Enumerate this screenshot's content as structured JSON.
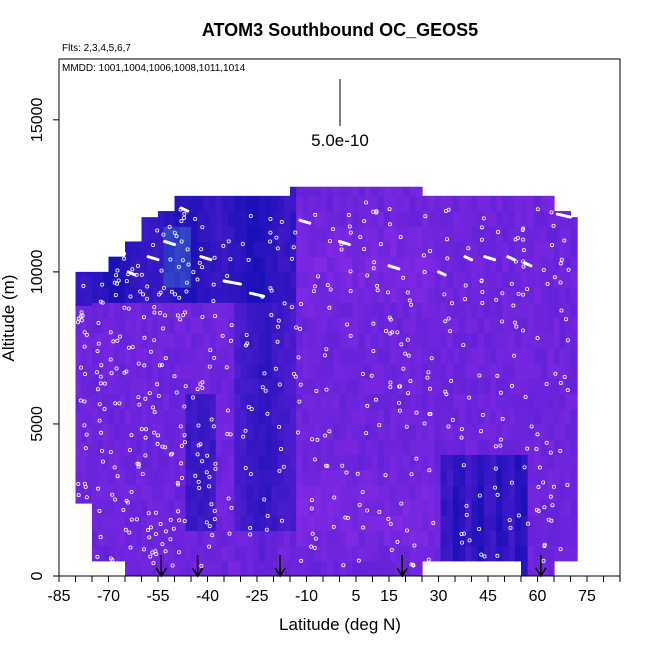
{
  "chart_data": {
    "type": "heatmap",
    "title": "ATOM3 Southbound OC_GEOS5",
    "flights_note": "Flts: 2,3,4,5,6,7",
    "dates_note": "MMDD: 1001,1004,1006,1008,1011,1014",
    "xlabel": "Latitude (deg N)",
    "ylabel": "Altitude (m)",
    "xlim": [
      -85,
      85
    ],
    "ylim": [
      0,
      17000
    ],
    "x_ticks": [
      -85,
      -70,
      -55,
      -40,
      -25,
      -10,
      5,
      15,
      30,
      45,
      60,
      75
    ],
    "y_ticks": [
      0,
      5000,
      10000,
      15000
    ],
    "scale_label": "5.0e-10",
    "profile_markers_lat": [
      -54,
      -43,
      -18,
      19,
      61
    ],
    "columns": [
      {
        "lat_min": -80,
        "lat_max": -75,
        "alt_top": 10000,
        "alt_bottom": 2400
      },
      {
        "lat_min": -75,
        "lat_max": -70,
        "alt_top": 10000,
        "alt_bottom": 500
      },
      {
        "lat_min": -70,
        "lat_max": -65,
        "alt_top": 10500,
        "alt_bottom": 500
      },
      {
        "lat_min": -65,
        "lat_max": -60,
        "alt_top": 11000,
        "alt_bottom": 0
      },
      {
        "lat_min": -60,
        "lat_max": -55,
        "alt_top": 11800,
        "alt_bottom": 0
      },
      {
        "lat_min": -55,
        "lat_max": -50,
        "alt_top": 12000,
        "alt_bottom": 0
      },
      {
        "lat_min": -50,
        "lat_max": -45,
        "alt_top": 12500,
        "alt_bottom": 0
      },
      {
        "lat_min": -45,
        "lat_max": -30,
        "alt_top": 12500,
        "alt_bottom": 0
      },
      {
        "lat_min": -30,
        "lat_max": -15,
        "alt_top": 12500,
        "alt_bottom": 0
      },
      {
        "lat_min": -15,
        "lat_max": 0,
        "alt_top": 12800,
        "alt_bottom": 0
      },
      {
        "lat_min": 0,
        "lat_max": 25,
        "alt_top": 12800,
        "alt_bottom": 0
      },
      {
        "lat_min": 25,
        "lat_max": 40,
        "alt_top": 12500,
        "alt_bottom": 500
      },
      {
        "lat_min": 40,
        "lat_max": 55,
        "alt_top": 12500,
        "alt_bottom": 500
      },
      {
        "lat_min": 55,
        "lat_max": 65,
        "alt_top": 12500,
        "alt_bottom": 0
      },
      {
        "lat_min": 65,
        "lat_max": 70,
        "alt_top": 12000,
        "alt_bottom": 500
      },
      {
        "lat_min": 70,
        "lat_max": 72,
        "alt_top": 11800,
        "alt_bottom": 500
      }
    ],
    "colors": {
      "low": "#1a10b8",
      "mid": "#3a18d8",
      "high": "#8a2be8",
      "light": "#4a74d8",
      "background": "#ffffff",
      "axis": "#000000",
      "sample_marker": "#ffffff"
    }
  }
}
